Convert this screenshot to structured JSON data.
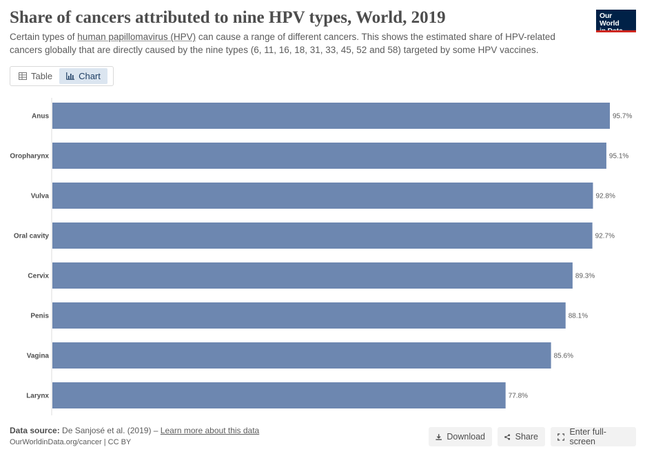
{
  "header": {
    "title": "Share of cancers attributed to nine HPV types, World, 2019",
    "subtitle_pre": "Certain types of ",
    "subtitle_link": "human papillomavirus (HPV)",
    "subtitle_post": " can cause a range of different cancers. This shows the estimated share of HPV-related cancers globally that are directly caused by the nine types (6, 11, 16, 18, 31, 33, 45, 52 and 58) targeted by some HPV vaccines.",
    "logo_line1": "Our World",
    "logo_line2": "in Data"
  },
  "tabs": [
    {
      "label": "Table",
      "icon": "table-icon",
      "active": false
    },
    {
      "label": "Chart",
      "icon": "chart-icon",
      "active": true
    }
  ],
  "chart_data": {
    "type": "bar",
    "orientation": "horizontal",
    "categories": [
      "Anus",
      "Oropharynx",
      "Vulva",
      "Oral cavity",
      "Cervix",
      "Penis",
      "Vagina",
      "Larynx"
    ],
    "values": [
      95.7,
      95.1,
      92.8,
      92.7,
      89.3,
      88.1,
      85.6,
      77.8
    ],
    "value_labels": [
      "95.7%",
      "95.1%",
      "92.8%",
      "92.7%",
      "89.3%",
      "88.1%",
      "85.6%",
      "77.8%"
    ],
    "unit": "%",
    "xlim": [
      0,
      95.7
    ],
    "bar_color": "#6d87b0",
    "grid": false,
    "legend": false
  },
  "footer": {
    "source_label": "Data source:",
    "source_text": " De Sanjosé et al. (2019) – ",
    "learn_more": "Learn more about this data",
    "url_line": "OurWorldinData.org/cancer | CC BY"
  },
  "actions": {
    "download": "Download",
    "share": "Share",
    "fullscreen": "Enter full-screen"
  }
}
